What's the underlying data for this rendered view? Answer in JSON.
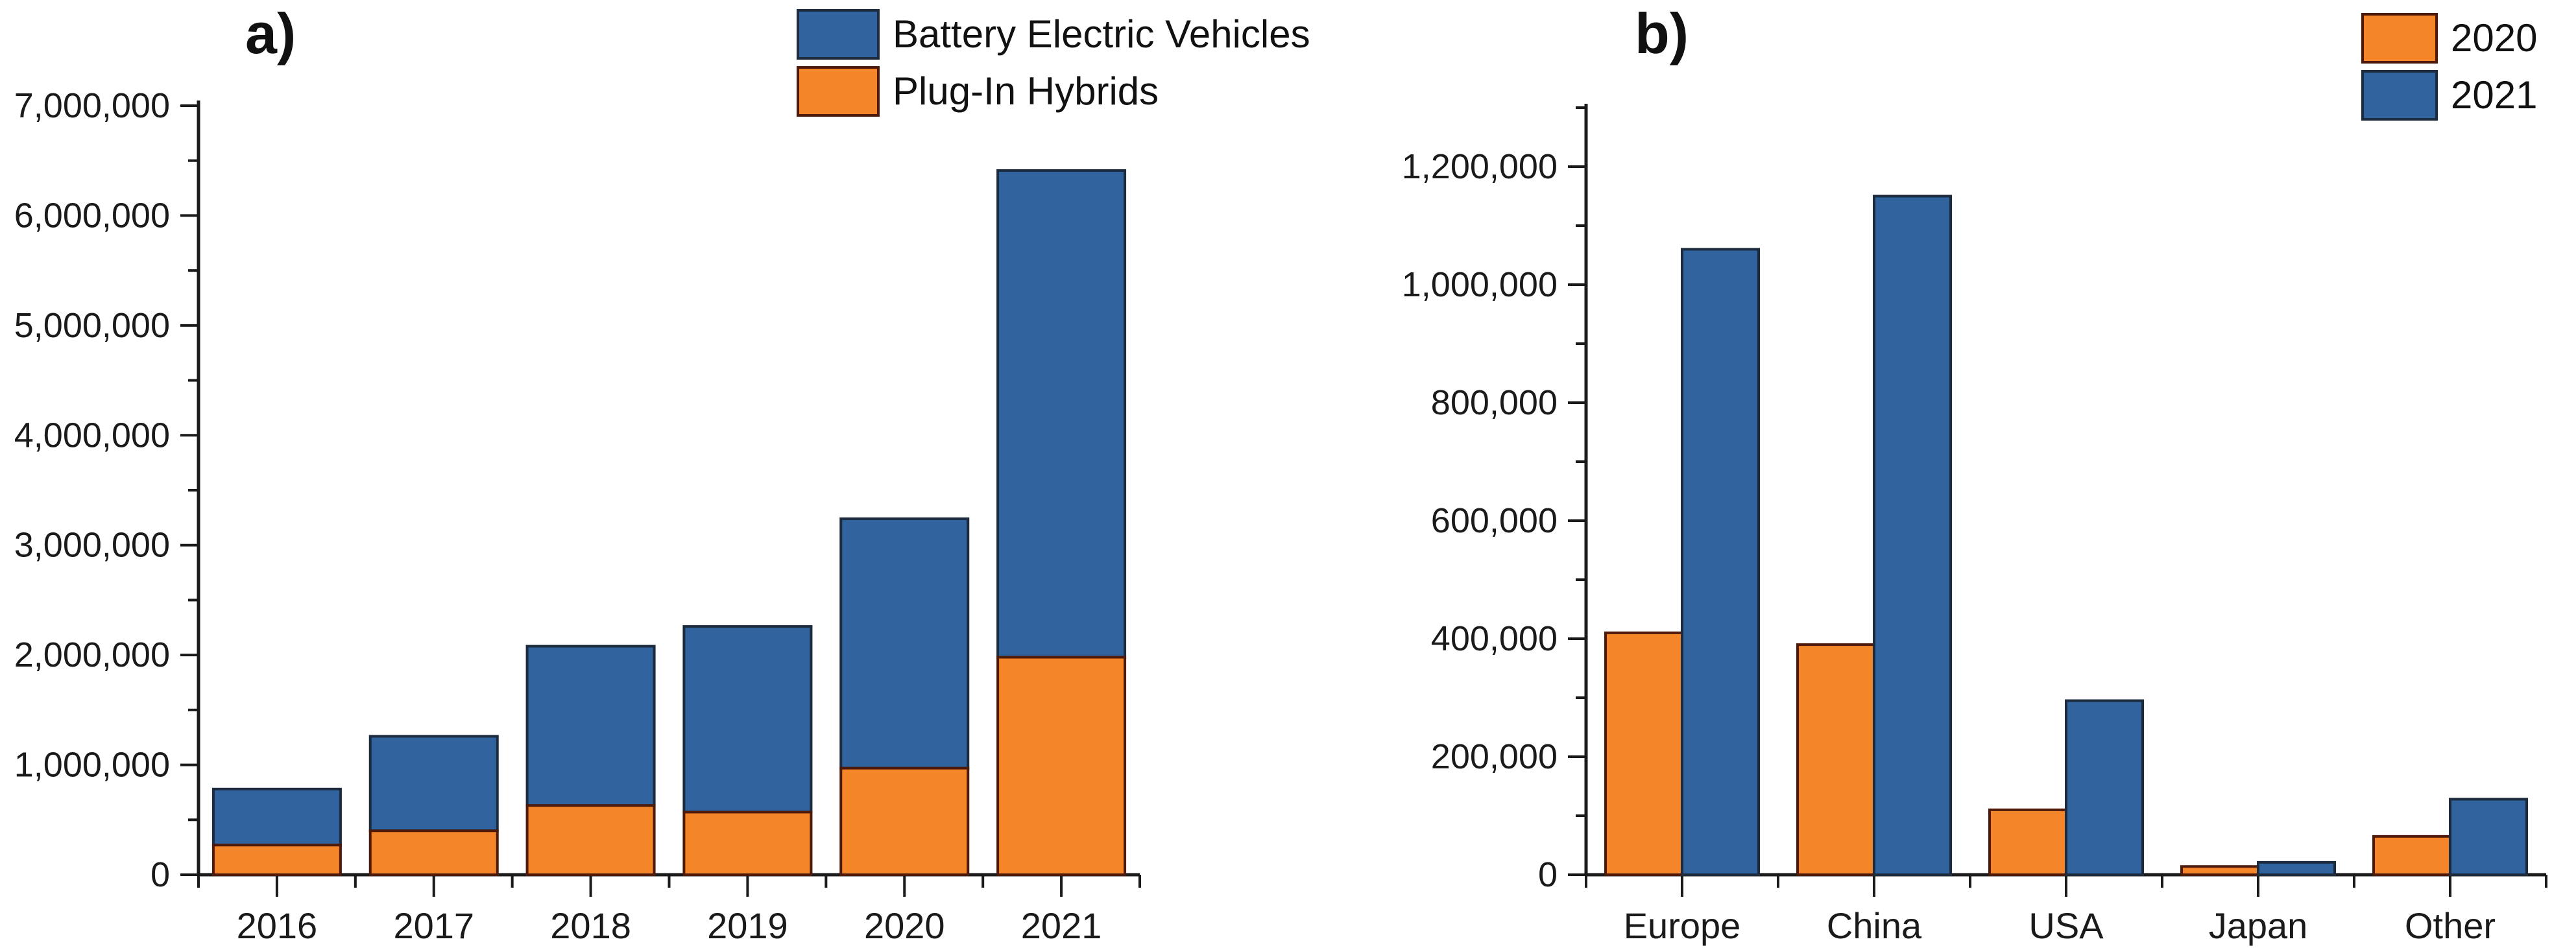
{
  "figure": {
    "background": "#ffffff",
    "text_color": "#1a1a1a",
    "axis_color": "#1a1a1a"
  },
  "chart_data": [
    {
      "type": "bar",
      "subtype": "stacked",
      "panel_label": "a)",
      "categories": [
        "2016",
        "2017",
        "2018",
        "2019",
        "2020",
        "2021"
      ],
      "series": [
        {
          "name": "Plug-In Hybrids",
          "color": "#F58529",
          "border": "#4D1A0C",
          "values": [
            270000,
            400000,
            630000,
            570000,
            970000,
            1980000
          ]
        },
        {
          "name": "Battery Electric Vehicles",
          "color": "#31639E",
          "border": "#1C2B3D",
          "values": [
            510000,
            860000,
            1450000,
            1690000,
            2270000,
            4430000
          ]
        }
      ],
      "stack_totals": [
        780000,
        1260000,
        2080000,
        2260000,
        3240000,
        6410000
      ],
      "legend_order": [
        "Battery Electric Vehicles",
        "Plug-In Hybrids"
      ],
      "legend_position": "top-center",
      "xlabel": "",
      "ylabel": "",
      "ylim": [
        0,
        7000000
      ],
      "y_major_step": 1000000,
      "y_minor_step": 500000,
      "y_tick_labels": [
        "0",
        "1,000,000",
        "2,000,000",
        "3,000,000",
        "4,000,000",
        "5,000,000",
        "6,000,000",
        "7,000,000"
      ],
      "grid": false
    },
    {
      "type": "bar",
      "subtype": "grouped",
      "panel_label": "b)",
      "categories": [
        "Europe",
        "China",
        "USA",
        "Japan",
        "Other"
      ],
      "series": [
        {
          "name": "2020",
          "color": "#F58529",
          "border": "#4D1A0C",
          "values": [
            410000,
            390000,
            110000,
            14000,
            65000
          ]
        },
        {
          "name": "2021",
          "color": "#31639E",
          "border": "#1C2B3D",
          "values": [
            1060000,
            1150000,
            295000,
            21000,
            128000
          ]
        }
      ],
      "legend_order": [
        "2020",
        "2021"
      ],
      "legend_position": "top-right",
      "xlabel": "",
      "ylabel": "",
      "ylim": [
        0,
        1300000
      ],
      "y_major_step": 200000,
      "y_minor_step": 100000,
      "y_tick_labels": [
        "0",
        "200,000",
        "400,000",
        "600,000",
        "800,000",
        "1,000,000",
        "1,200,000"
      ],
      "grid": false
    }
  ]
}
